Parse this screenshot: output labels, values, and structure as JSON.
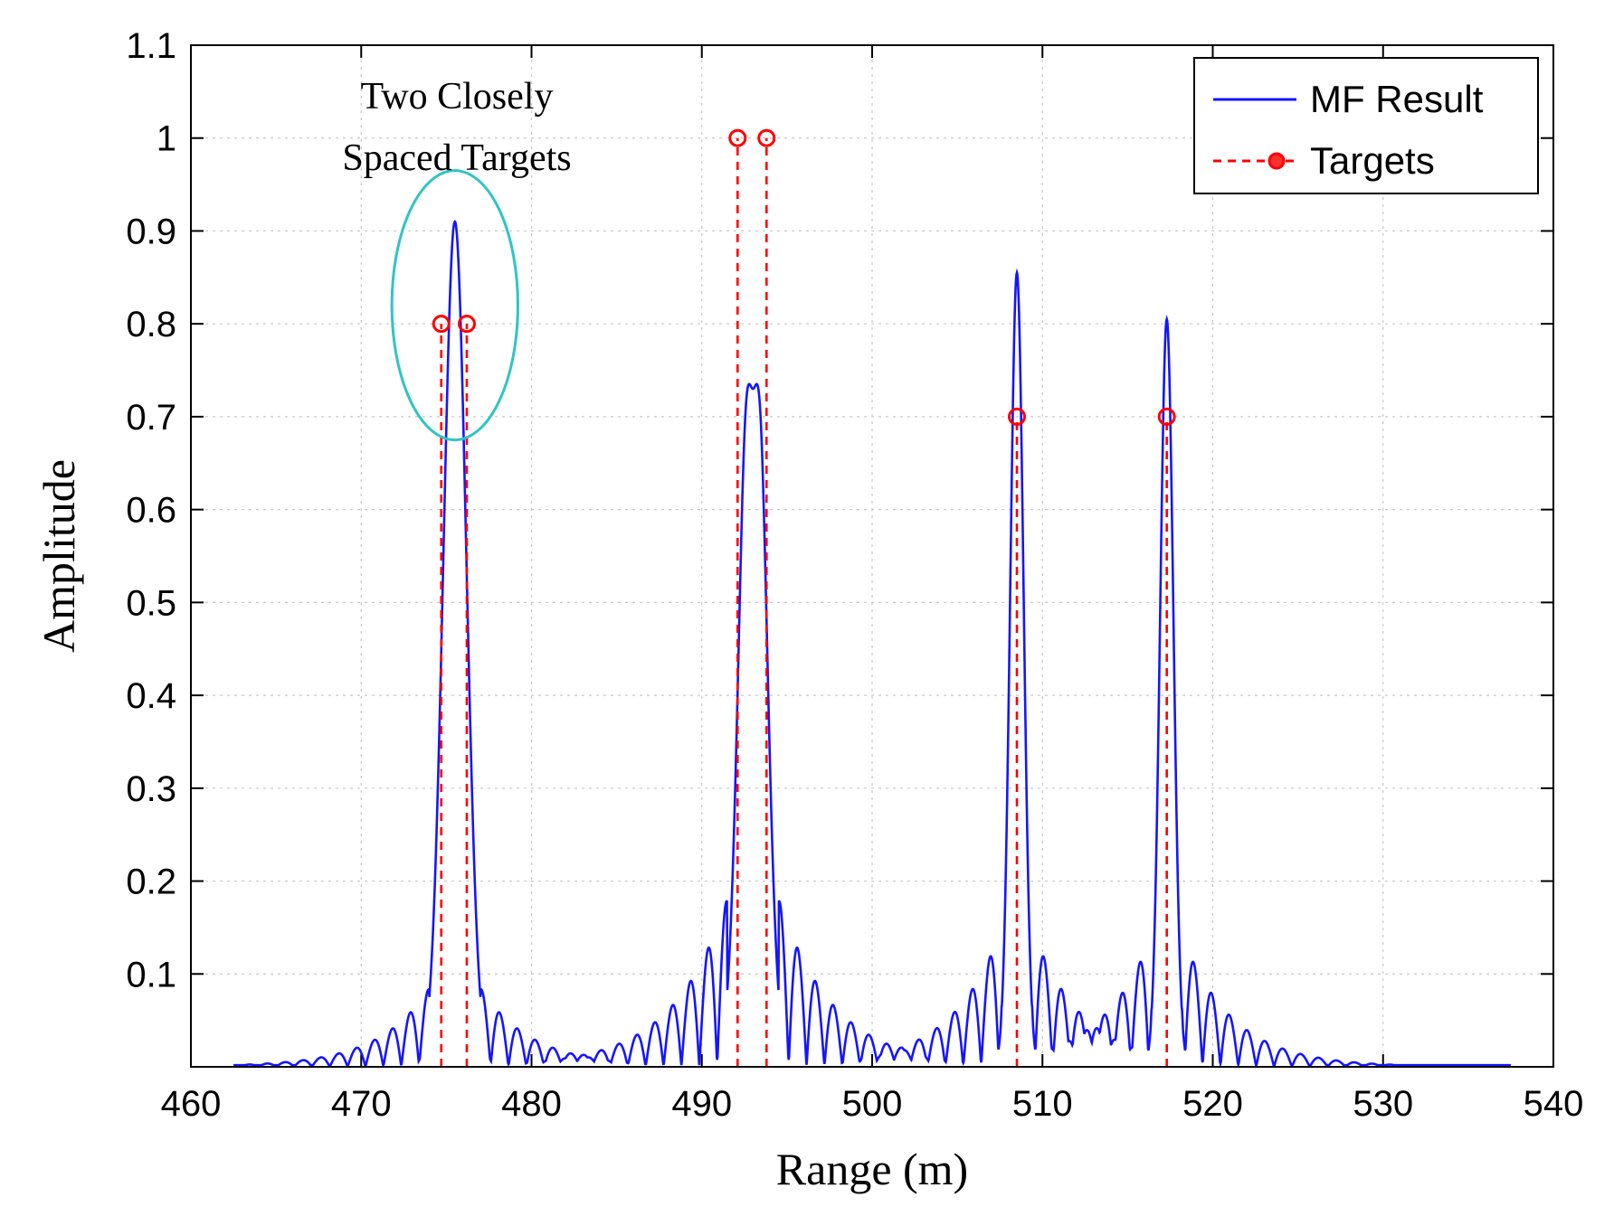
{
  "chart_data": {
    "type": "line",
    "xlabel": "Range (m)",
    "ylabel": "Amplitude",
    "xlim": [
      460,
      540
    ],
    "ylim": [
      0,
      1.1
    ],
    "x_ticks": [
      "460",
      "470",
      "480",
      "490",
      "500",
      "510",
      "520",
      "530",
      "540"
    ],
    "y_ticks": [
      "0.1",
      "0.2",
      "0.3",
      "0.4",
      "0.5",
      "0.6",
      "0.7",
      "0.8",
      "0.9",
      "1",
      "1.1"
    ],
    "grid": true,
    "legend": {
      "location": "top-right",
      "entries": [
        "MF Result",
        "Targets"
      ]
    },
    "annotation": {
      "lines": [
        "Two Closely",
        "Spaced Targets"
      ],
      "ellipse_center": [
        475.5,
        0.82
      ],
      "ellipse_radius": [
        3.7,
        0.145
      ]
    },
    "series": [
      {
        "name": "MF Result",
        "style": "solid",
        "color": "#1515ff",
        "x_range": [
          462.5,
          537.5
        ],
        "envelope": {
          "background": 0.0018,
          "components": [
            {
              "center": 475.5,
              "amp": 0.91,
              "width": 0.95,
              "sidelobe_amp": 0.14,
              "sidelobe_decay": 3.0,
              "fringe": 1.05,
              "dip_depth": 0.0
            },
            {
              "center": 493.0,
              "amp": 1.0,
              "width": 0.95,
              "sidelobe_amp": 0.29,
              "sidelobe_decay": 3.2,
              "fringe": 1.05,
              "dip_depth": 0.27
            },
            {
              "center": 508.5,
              "amp": 0.855,
              "width": 0.55,
              "sidelobe_amp": 0.2,
              "sidelobe_decay": 3.0,
              "fringe": 1.05,
              "dip_depth": 0.0
            },
            {
              "center": 517.3,
              "amp": 0.805,
              "width": 0.55,
              "sidelobe_amp": 0.19,
              "sidelobe_decay": 3.0,
              "fringe": 1.05,
              "dip_depth": 0.0
            }
          ],
          "dip_center": 493.0
        }
      },
      {
        "name": "Targets",
        "style": "dashed-stem",
        "color": "#ff0000",
        "marker": "circle",
        "x": [
          474.7,
          476.2,
          492.1,
          493.8,
          508.5,
          517.3
        ],
        "y": [
          0.8,
          0.8,
          1.0,
          1.0,
          0.7,
          0.7
        ]
      }
    ]
  }
}
